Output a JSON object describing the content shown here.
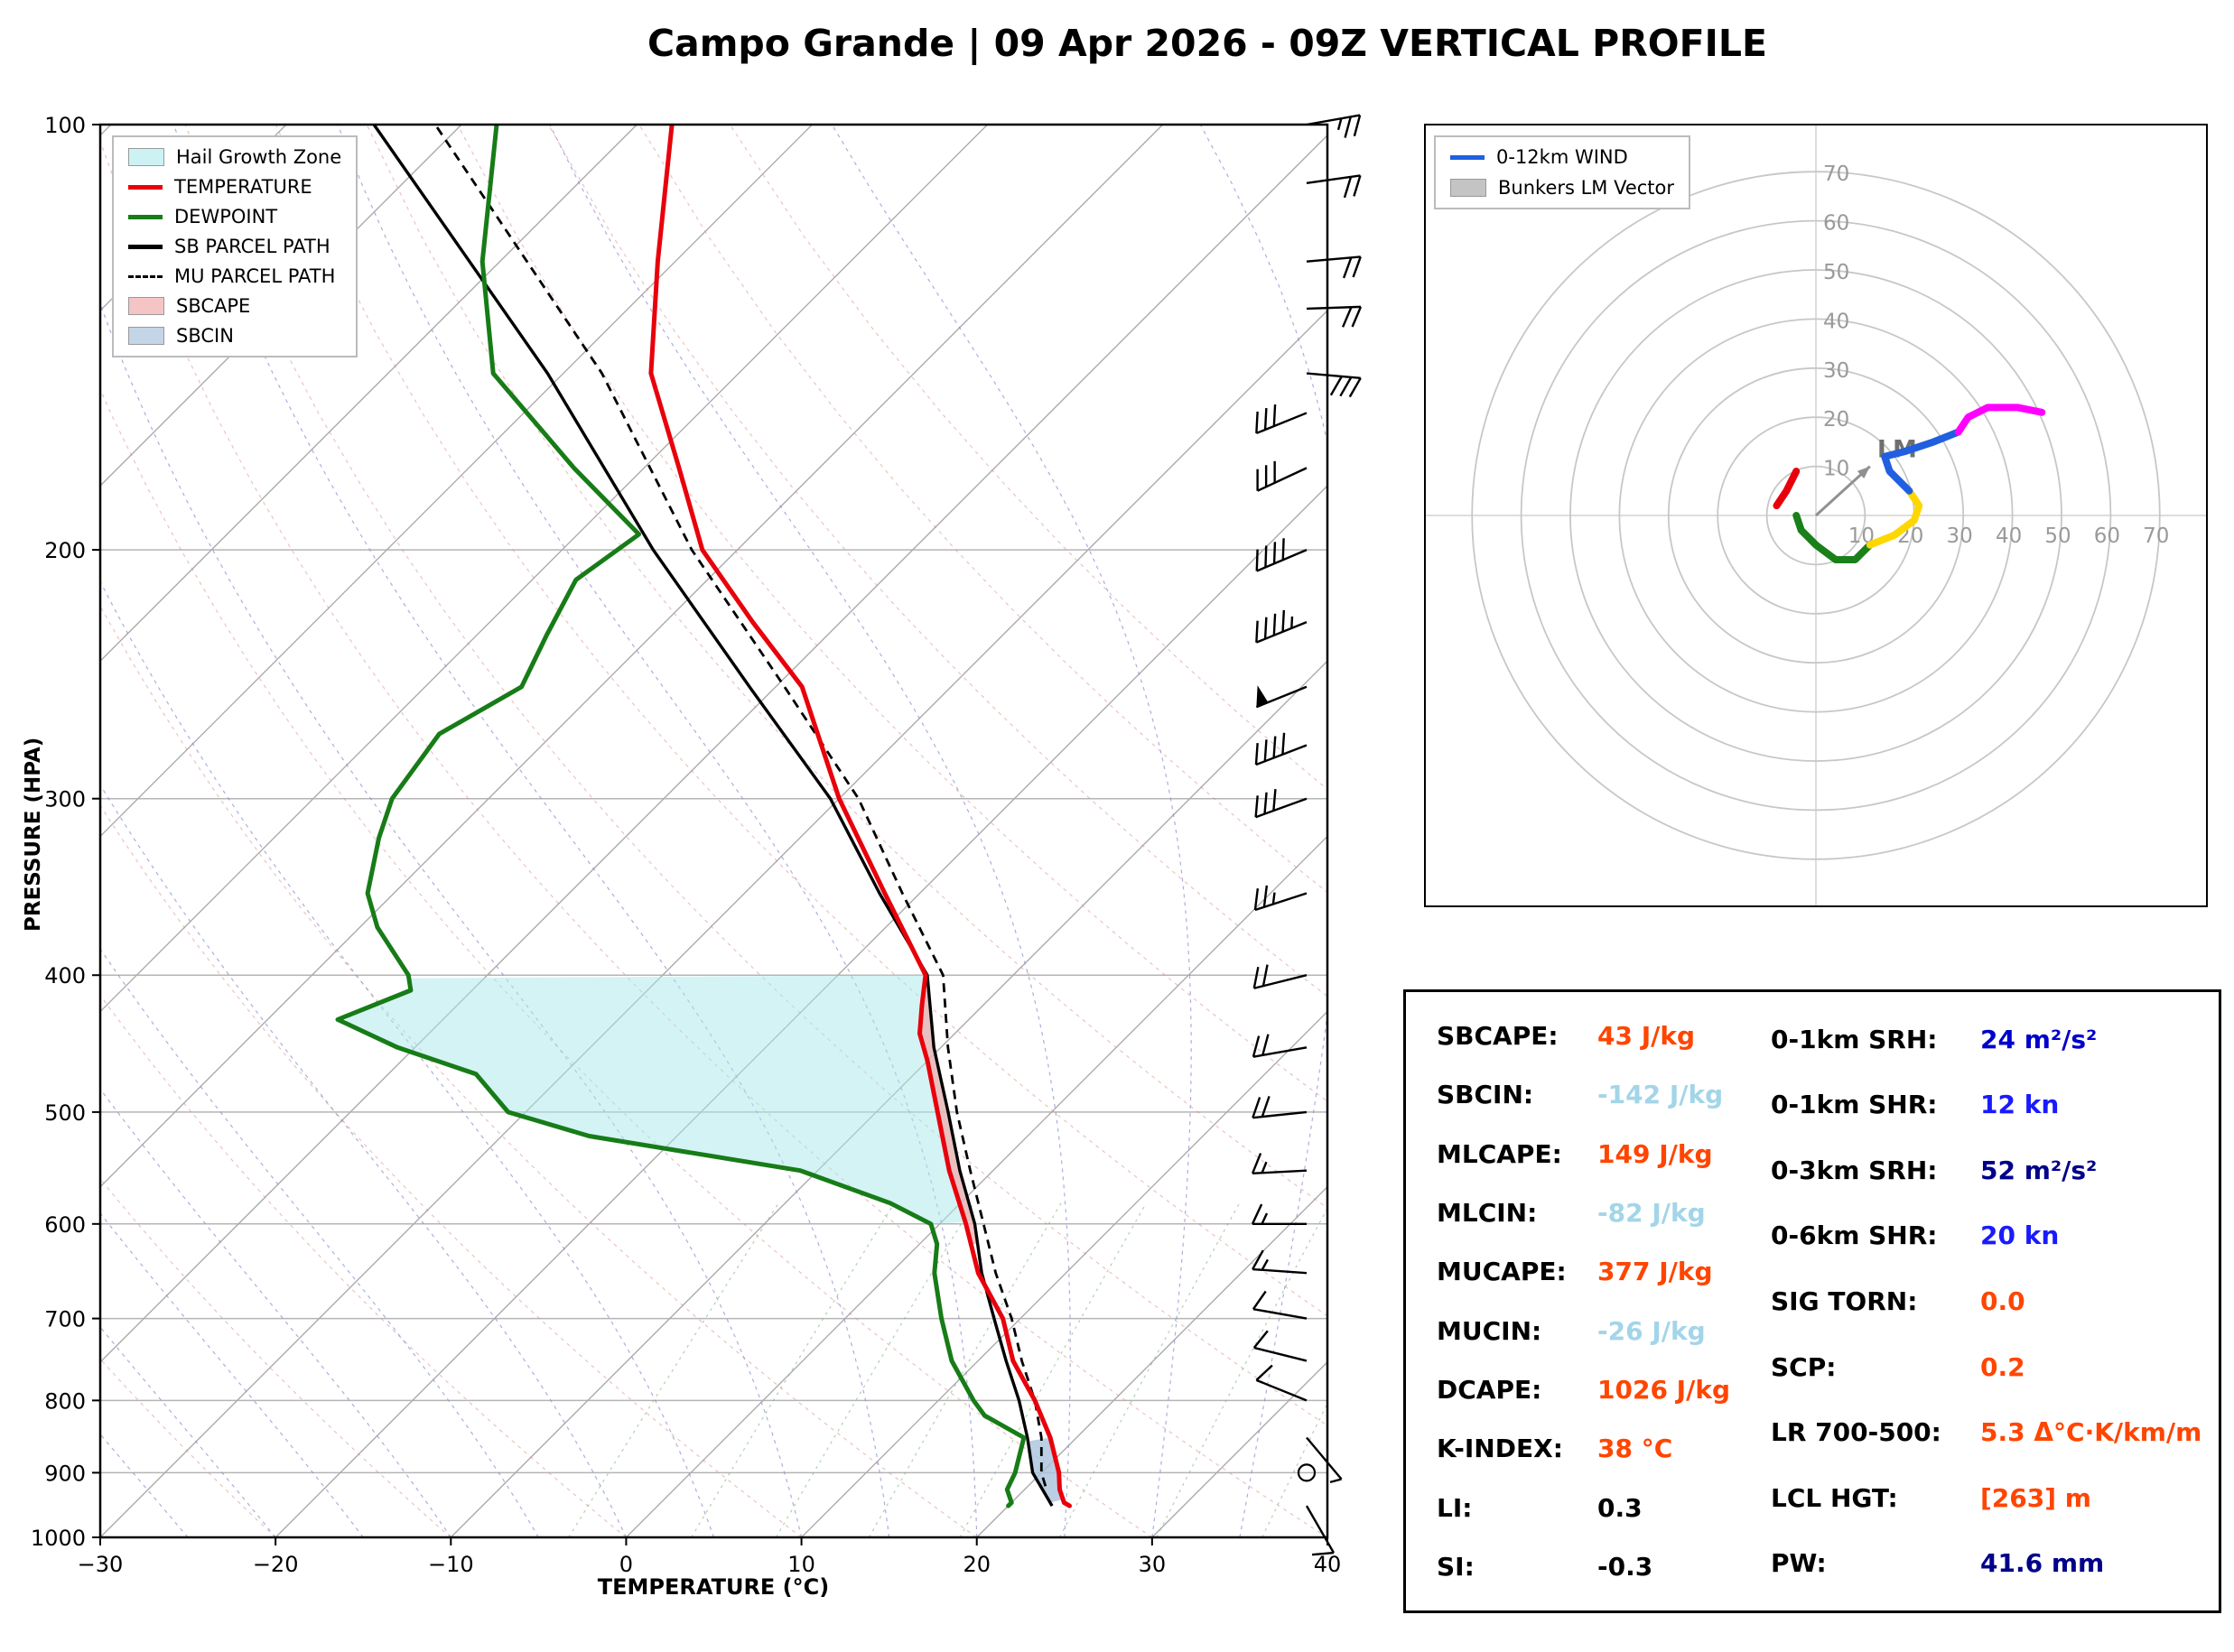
{
  "title": "Campo Grande | 09 Apr 2026 - 09Z VERTICAL PROFILE",
  "skewt": {
    "xlabel": "TEMPERATURE (°C)",
    "ylabel": "PRESSURE (HPA)",
    "pressure_ticks": [
      100,
      200,
      300,
      400,
      500,
      600,
      700,
      800,
      900,
      1000
    ],
    "temp_ticks": [
      -30,
      -20,
      -10,
      0,
      10,
      20,
      30,
      40
    ],
    "legend": [
      {
        "label": "Hail Growth Zone",
        "swatch": "patch",
        "color": "#ccf2f4"
      },
      {
        "label": "TEMPERATURE",
        "swatch": "line",
        "color": "#e8000b"
      },
      {
        "label": "DEWPOINT",
        "swatch": "line",
        "color": "#177c17"
      },
      {
        "label": "SB PARCEL PATH",
        "swatch": "line",
        "color": "#000000"
      },
      {
        "label": "MU PARCEL PATH",
        "swatch": "dash",
        "color": "#000000"
      },
      {
        "label": "SBCAPE",
        "swatch": "patch",
        "color": "#f5c4c4"
      },
      {
        "label": "SBCIN",
        "swatch": "patch",
        "color": "#c3d5e6"
      }
    ]
  },
  "chart_data": {
    "type": "line",
    "subtype": "skew-t-log-p with hodograph",
    "title": "Campo Grande | 09 Apr 2026 - 09Z VERTICAL PROFILE",
    "xlabel": "TEMPERATURE (°C)",
    "ylabel": "PRESSURE (HPA)",
    "xlim": [
      -30,
      40
    ],
    "ylim_hpa": [
      1000,
      100
    ],
    "colors": {
      "temperature": "#e8000b",
      "dewpoint": "#177c17",
      "sb_parcel": "#000000",
      "mu_parcel": "#000000",
      "hail_zone": "#a9e7ec",
      "sbcape": "#f2a9a9",
      "sbcin": "#a9c3dd",
      "isolines": "#ababab",
      "dry_adiabat": "#d98880",
      "moist_adiabat": "#8a8ad0",
      "mixing_ratio": "#7cb37c"
    },
    "temperature_profile": [
      [
        950,
        23.5
      ],
      [
        945,
        23
      ],
      [
        925,
        22
      ],
      [
        900,
        21
      ],
      [
        850,
        18.5
      ],
      [
        800,
        15.5
      ],
      [
        750,
        12
      ],
      [
        700,
        9
      ],
      [
        650,
        5
      ],
      [
        600,
        1.5
      ],
      [
        550,
        -2.5
      ],
      [
        500,
        -6.5
      ],
      [
        460,
        -10
      ],
      [
        440,
        -12
      ],
      [
        420,
        -13.5
      ],
      [
        400,
        -15
      ],
      [
        350,
        -22
      ],
      [
        300,
        -30
      ],
      [
        250,
        -38.5
      ],
      [
        225,
        -45
      ],
      [
        200,
        -52
      ],
      [
        175,
        -58
      ],
      [
        150,
        -65
      ],
      [
        125,
        -71
      ],
      [
        100,
        -78
      ]
    ],
    "dewpoint_profile": [
      [
        950,
        20
      ],
      [
        945,
        20
      ],
      [
        925,
        19
      ],
      [
        900,
        18.5
      ],
      [
        850,
        17
      ],
      [
        820,
        13.5
      ],
      [
        800,
        12
      ],
      [
        750,
        8.5
      ],
      [
        700,
        5.5
      ],
      [
        650,
        2.5
      ],
      [
        620,
        1
      ],
      [
        600,
        -0.5
      ],
      [
        580,
        -4
      ],
      [
        550,
        -11
      ],
      [
        520,
        -25
      ],
      [
        500,
        -31
      ],
      [
        470,
        -35
      ],
      [
        450,
        -41
      ],
      [
        430,
        -46
      ],
      [
        410,
        -43.5
      ],
      [
        400,
        -44.5
      ],
      [
        370,
        -49
      ],
      [
        350,
        -51.5
      ],
      [
        320,
        -54
      ],
      [
        300,
        -55.5
      ],
      [
        270,
        -56.5
      ],
      [
        250,
        -54.5
      ],
      [
        230,
        -56
      ],
      [
        210,
        -57.5
      ],
      [
        195,
        -56.5
      ],
      [
        175,
        -64
      ],
      [
        150,
        -74
      ],
      [
        125,
        -81
      ],
      [
        100,
        -88
      ]
    ],
    "sb_parcel_path": [
      [
        950,
        22.5
      ],
      [
        900,
        19.5
      ],
      [
        850,
        17.2
      ],
      [
        800,
        14.6
      ],
      [
        750,
        11.6
      ],
      [
        700,
        8.5
      ],
      [
        650,
        5.2
      ],
      [
        600,
        2.0
      ],
      [
        550,
        -1.9
      ],
      [
        500,
        -5.9
      ],
      [
        450,
        -10.4
      ],
      [
        400,
        -14.9
      ],
      [
        350,
        -22.3
      ],
      [
        300,
        -30.5
      ],
      [
        250,
        -41.5
      ],
      [
        200,
        -54.8
      ],
      [
        150,
        -70.9
      ],
      [
        100,
        -95
      ]
    ],
    "mu_parcel_path": [
      [
        920,
        21
      ],
      [
        900,
        20
      ],
      [
        850,
        18
      ],
      [
        800,
        15.5
      ],
      [
        750,
        12.5
      ],
      [
        700,
        9.5
      ],
      [
        650,
        6
      ],
      [
        600,
        2.5
      ],
      [
        550,
        -1.3
      ],
      [
        500,
        -5.4
      ],
      [
        450,
        -9.6
      ],
      [
        400,
        -14.0
      ],
      [
        350,
        -21
      ],
      [
        300,
        -28.9
      ],
      [
        250,
        -39.5
      ],
      [
        200,
        -52.6
      ],
      [
        150,
        -67.8
      ],
      [
        100,
        -91.5
      ]
    ],
    "hail_growth_zone_hpa": {
      "top": 400,
      "bottom": 600
    },
    "sbcin_zone_hpa": {
      "top": 850,
      "bottom": 945
    },
    "sbcape_zone_hpa": {
      "top": 410,
      "bottom": 620
    },
    "dry_adiabats_theta_c": [
      -30,
      -20,
      -10,
      0,
      10,
      20,
      30,
      40,
      50,
      60,
      70,
      80,
      90,
      100,
      110
    ],
    "moist_adiabats_start_c": [
      -30,
      -25,
      -20,
      -15,
      -10,
      -5,
      0,
      5,
      10,
      15,
      20,
      25,
      30,
      35,
      40
    ],
    "mixing_ratio_g_kg": [
      3,
      5,
      7,
      10,
      14,
      20,
      28,
      40
    ],
    "wind_barbs": [
      {
        "p": 100,
        "spd": 25,
        "dir": 80
      },
      {
        "p": 110,
        "spd": 22,
        "dir": 82
      },
      {
        "p": 125,
        "spd": 20,
        "dir": 85
      },
      {
        "p": 135,
        "spd": 20,
        "dir": 88
      },
      {
        "p": 150,
        "spd": 28,
        "dir": 95
      },
      {
        "p": 160,
        "spd": 30,
        "dir": 248
      },
      {
        "p": 175,
        "spd": 32,
        "dir": 245
      },
      {
        "p": 200,
        "spd": 40,
        "dir": 247
      },
      {
        "p": 225,
        "spd": 45,
        "dir": 248
      },
      {
        "p": 250,
        "spd": 50,
        "dir": 248
      },
      {
        "p": 275,
        "spd": 40,
        "dir": 249
      },
      {
        "p": 300,
        "spd": 32,
        "dir": 250
      },
      {
        "p": 350,
        "spd": 25,
        "dir": 252
      },
      {
        "p": 400,
        "spd": 22,
        "dir": 256
      },
      {
        "p": 450,
        "spd": 20,
        "dir": 260
      },
      {
        "p": 500,
        "spd": 18,
        "dir": 264
      },
      {
        "p": 550,
        "spd": 16,
        "dir": 267
      },
      {
        "p": 600,
        "spd": 15,
        "dir": 270
      },
      {
        "p": 650,
        "spd": 14,
        "dir": 274
      },
      {
        "p": 700,
        "spd": 12,
        "dir": 280
      },
      {
        "p": 750,
        "spd": 10,
        "dir": 284
      },
      {
        "p": 800,
        "spd": 8,
        "dir": 292
      },
      {
        "p": 850,
        "spd": 6,
        "dir": 140
      },
      {
        "p": 900,
        "spd": 0,
        "dir": 0
      },
      {
        "p": 950,
        "spd": 8,
        "dir": 150
      }
    ],
    "hodograph": {
      "rings_kn": [
        10,
        20,
        30,
        40,
        50,
        60,
        70
      ],
      "segments": [
        {
          "layer": "0-1km",
          "color": "#e8000b",
          "uv": [
            [
              -8,
              2
            ],
            [
              -6,
              5
            ],
            [
              -4,
              9
            ]
          ]
        },
        {
          "layer": "1-3km",
          "color": "#1a801a",
          "uv": [
            [
              -4,
              0
            ],
            [
              -3,
              -3
            ],
            [
              0,
              -6
            ],
            [
              4,
              -9
            ],
            [
              8,
              -9
            ],
            [
              11,
              -6
            ]
          ]
        },
        {
          "layer": "3-6km",
          "color": "#ffd700",
          "uv": [
            [
              11,
              -6
            ],
            [
              16,
              -4
            ],
            [
              20,
              -1
            ],
            [
              21,
              2
            ],
            [
              19,
              5
            ]
          ]
        },
        {
          "layer": "6-9km",
          "color": "#1f5fe0",
          "uv": [
            [
              19,
              5
            ],
            [
              15,
              9
            ],
            [
              14,
              12
            ],
            [
              18,
              13
            ],
            [
              24,
              15
            ],
            [
              29,
              17
            ]
          ]
        },
        {
          "layer": "9-12km",
          "color": "#ff00ff",
          "uv": [
            [
              29,
              17
            ],
            [
              31,
              20
            ],
            [
              35,
              22
            ],
            [
              41,
              22
            ],
            [
              46,
              21
            ]
          ]
        }
      ],
      "lm_vector_uv": [
        11,
        10
      ],
      "lm_label": "LM",
      "legend_items": [
        {
          "label": "0-12km WIND",
          "swatch": "line",
          "color": "#1f5fe0"
        },
        {
          "label": "Bunkers LM Vector",
          "swatch": "patch",
          "color": "#c4c4c4"
        }
      ]
    }
  },
  "stats": {
    "left": [
      {
        "label": "SBCAPE:",
        "value": "43 J/kg",
        "color": "#ff4500"
      },
      {
        "label": "SBCIN:",
        "value": "-142 J/kg",
        "color": "#a3d5e8"
      },
      {
        "label": "MLCAPE:",
        "value": "149 J/kg",
        "color": "#ff4500"
      },
      {
        "label": "MLCIN:",
        "value": "-82 J/kg",
        "color": "#a3d5e8"
      },
      {
        "label": "MUCAPE:",
        "value": "377 J/kg",
        "color": "#ff4500"
      },
      {
        "label": "MUCIN:",
        "value": "-26 J/kg",
        "color": "#a3d5e8"
      },
      {
        "label": "DCAPE:",
        "value": "1026 J/kg",
        "color": "#ff4500"
      },
      {
        "label": "K-INDEX:",
        "value": "38 °C",
        "color": "#ff4500"
      },
      {
        "label": "LI:",
        "value": "0.3",
        "color": "#000000"
      },
      {
        "label": "SI:",
        "value": "-0.3",
        "color": "#000000"
      }
    ],
    "right": [
      {
        "label": "0-1km SRH:",
        "value": "24 m²/s²",
        "color": "#0000cd"
      },
      {
        "label": "0-1km SHR:",
        "value": "12 kn",
        "color": "#1a1aff"
      },
      {
        "label": "0-3km SRH:",
        "value": "52 m²/s²",
        "color": "#00008b"
      },
      {
        "label": "0-6km SHR:",
        "value": "20 kn",
        "color": "#1a1aff"
      },
      {
        "label": "SIG TORN:",
        "value": "0.0",
        "color": "#ff4500"
      },
      {
        "label": "SCP:",
        "value": "0.2",
        "color": "#ff4500"
      },
      {
        "label": "LR 700-500:",
        "value": "5.3 Δ°C·K/km/m",
        "color": "#ff4500"
      },
      {
        "label": "LCL HGT:",
        "value": "[263] m",
        "color": "#ff4500"
      },
      {
        "label": "PW:",
        "value": "41.6 mm",
        "color": "#00008b"
      }
    ]
  }
}
